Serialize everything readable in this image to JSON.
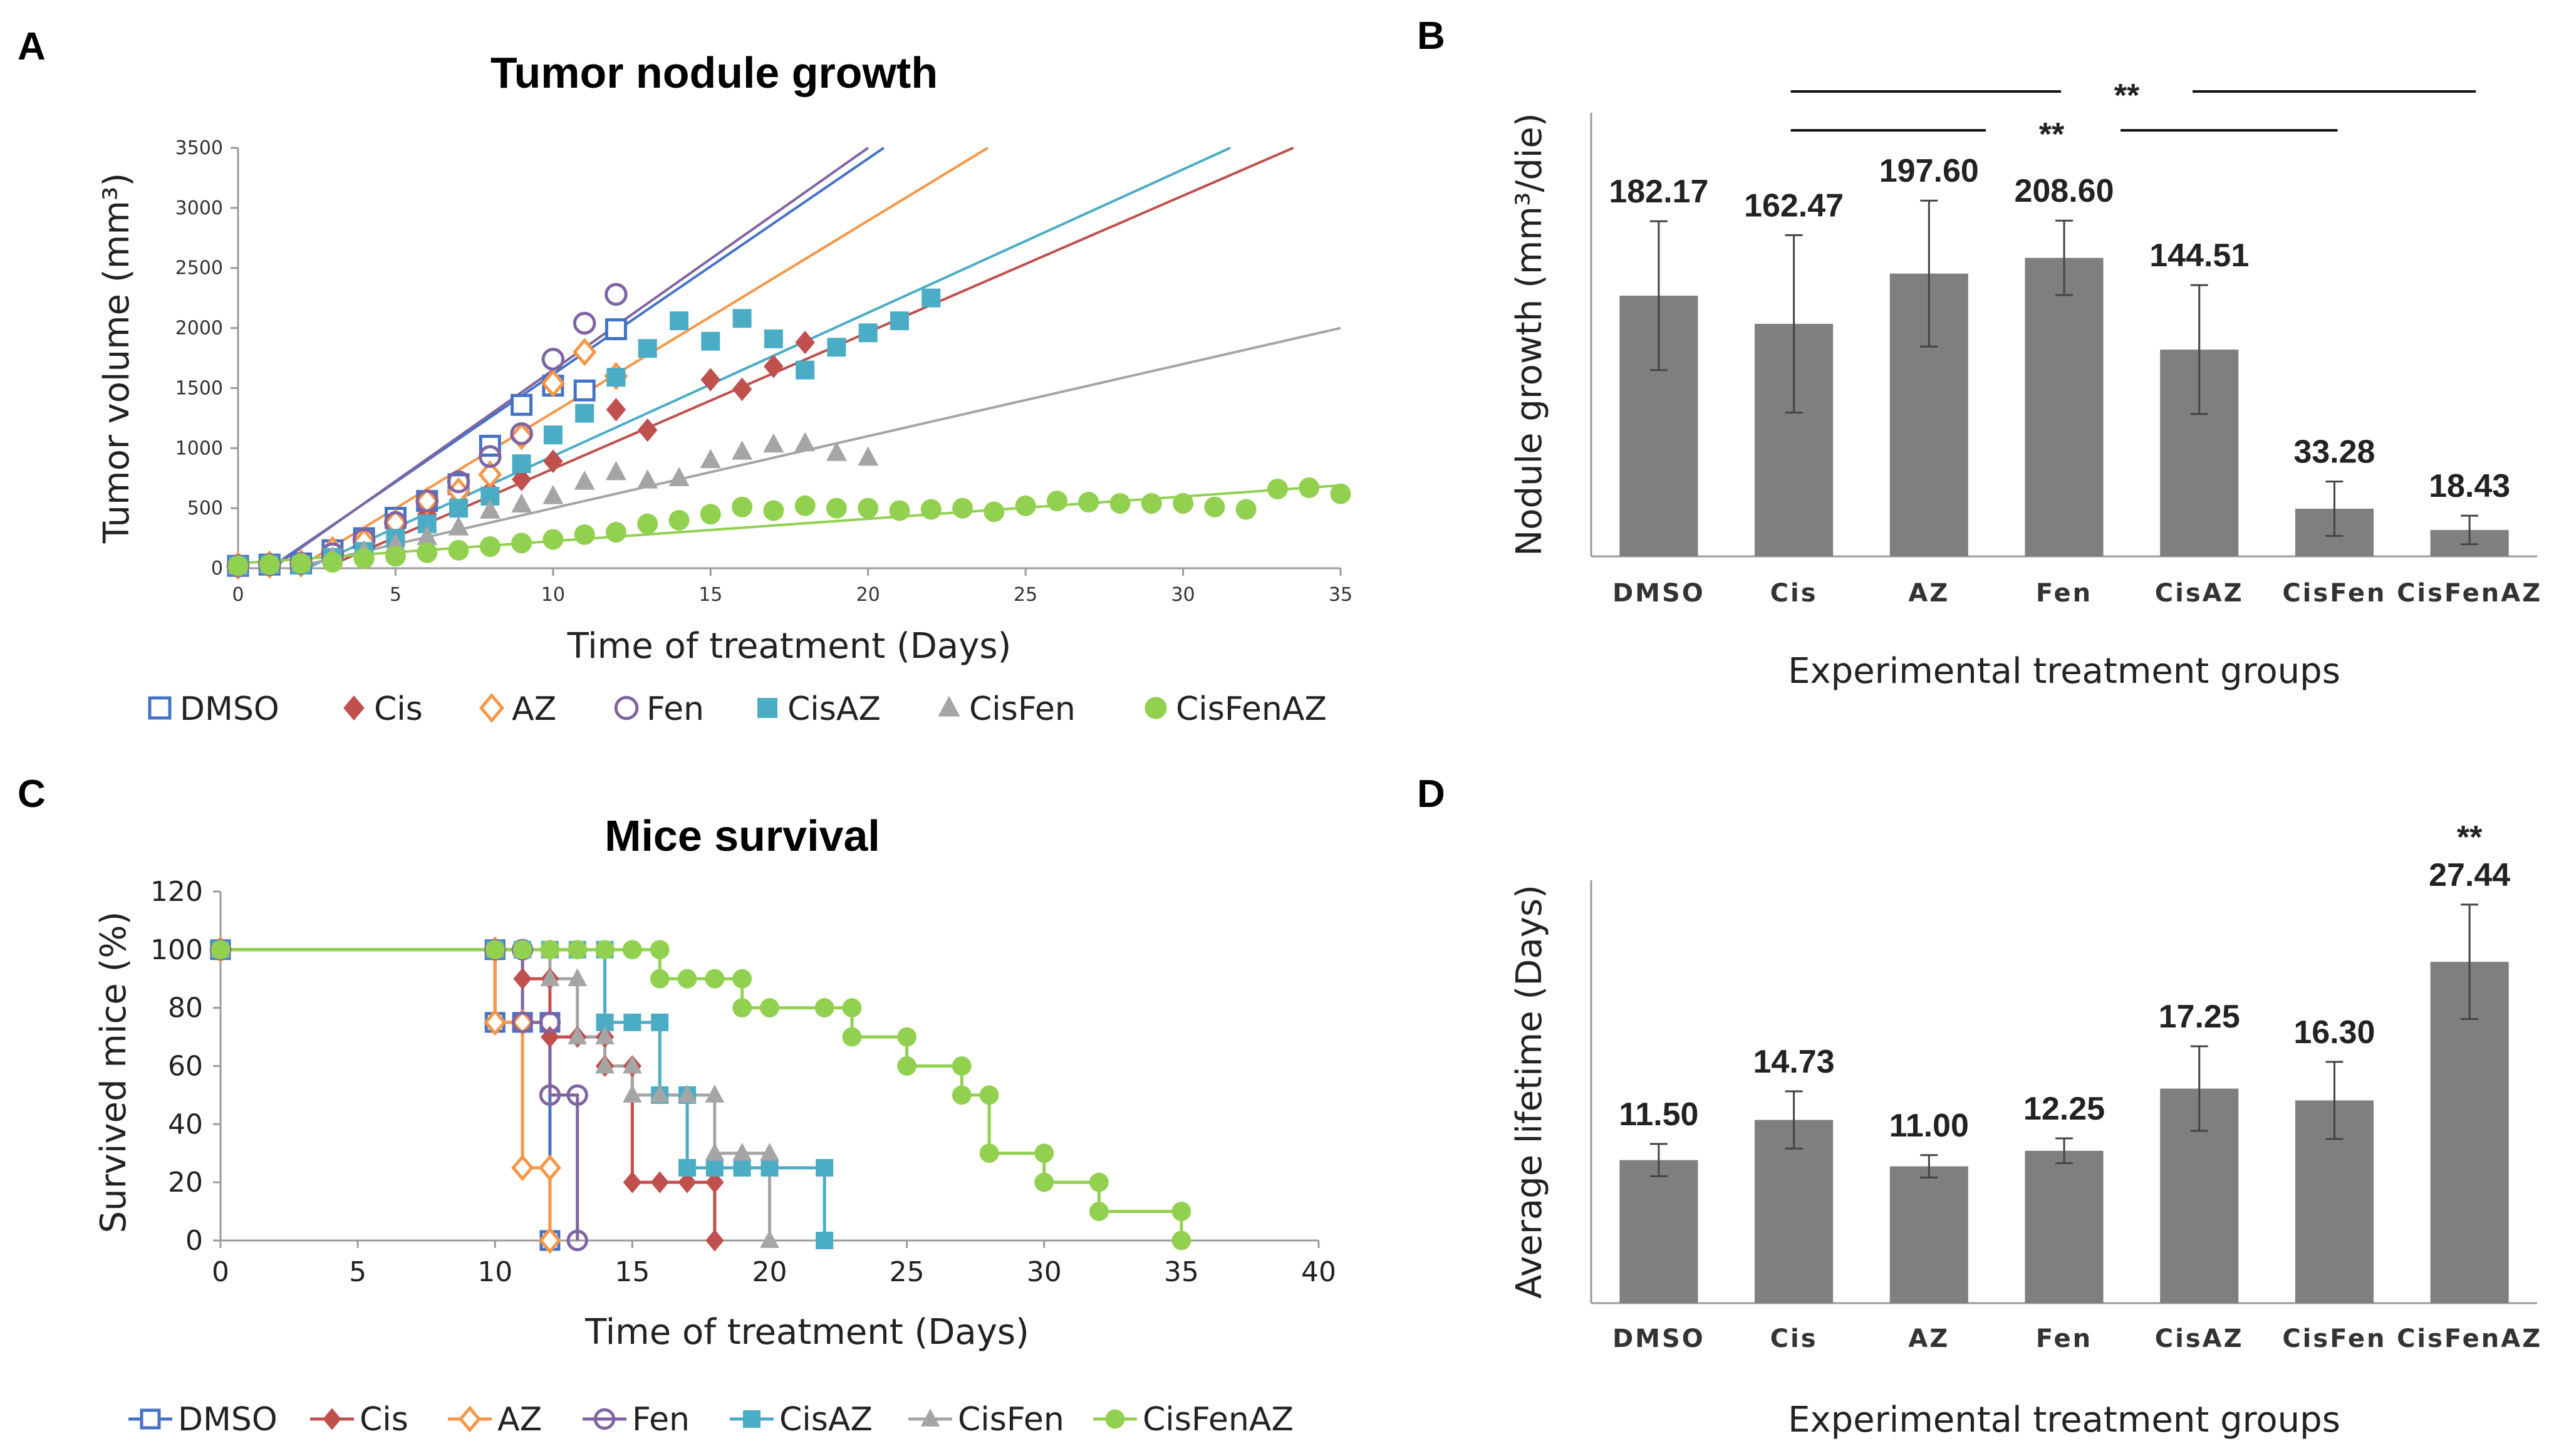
{
  "panels": {
    "A": "A",
    "B": "B",
    "C": "C",
    "D": "D"
  },
  "colors": {
    "DMSO": "#4472C4",
    "Cis": "#C0504D",
    "AZ": "#F79646",
    "Fen": "#8064A2",
    "CisAZ": "#4BACC6",
    "CisFen": "#A5A5A5",
    "CisFenAZ": "#92D050",
    "bar": "#7F7F7F"
  },
  "chart_data": [
    {
      "id": "A",
      "type": "scatter",
      "title": "Tumor nodule growth",
      "xlabel": "Time of treatment (Days)",
      "ylabel": "Tumor volume (mm³)",
      "xlim": [
        0,
        35
      ],
      "ylim": [
        0,
        3500
      ],
      "xticks": [
        0,
        5,
        10,
        15,
        20,
        25,
        30,
        35
      ],
      "yticks": [
        0,
        500,
        1000,
        1500,
        2000,
        2500,
        3000,
        3500
      ],
      "series": [
        {
          "name": "DMSO",
          "marker": "square-open",
          "x": [
            0,
            1,
            2,
            3,
            4,
            5,
            6,
            7,
            8,
            9,
            10,
            11,
            12
          ],
          "y": [
            20,
            30,
            40,
            150,
            250,
            420,
            560,
            700,
            1020,
            1360,
            1520,
            1480,
            1990
          ],
          "trend": [
            [
              0,
              -180
            ],
            [
              20.5,
              3500
            ]
          ]
        },
        {
          "name": "Cis",
          "marker": "diamond",
          "x": [
            0,
            1,
            2,
            3,
            4,
            5,
            6,
            7,
            8,
            9,
            10,
            12,
            13,
            15,
            16,
            17,
            18
          ],
          "y": [
            20,
            30,
            40,
            100,
            200,
            330,
            450,
            560,
            640,
            740,
            890,
            1320,
            1150,
            1570,
            1490,
            1680,
            1880
          ],
          "trend": [
            [
              0,
              -310
            ],
            [
              33.5,
              3500
            ]
          ]
        },
        {
          "name": "AZ",
          "marker": "diamond-open",
          "x": [
            0,
            1,
            2,
            3,
            4,
            5,
            6,
            7,
            8,
            9,
            10,
            11,
            12
          ],
          "y": [
            20,
            30,
            40,
            150,
            220,
            380,
            560,
            640,
            780,
            1100,
            1540,
            1800,
            1600
          ],
          "trend": [
            [
              0,
              -300
            ],
            [
              23.8,
              3500
            ]
          ]
        },
        {
          "name": "Fen",
          "marker": "circle-open",
          "x": [
            0,
            1,
            2,
            3,
            4,
            5,
            6,
            7,
            8,
            9,
            10,
            11,
            12
          ],
          "y": [
            20,
            30,
            40,
            120,
            240,
            380,
            560,
            720,
            930,
            1120,
            1740,
            2040,
            2280
          ],
          "trend": [
            [
              0,
              -200
            ],
            [
              20,
              3500
            ]
          ]
        },
        {
          "name": "CisAZ",
          "marker": "square",
          "x": [
            0,
            1,
            2,
            3,
            4,
            5,
            6,
            7,
            8,
            9,
            10,
            11,
            12,
            13,
            14,
            15,
            16,
            17,
            18,
            19,
            20,
            21,
            22
          ],
          "y": [
            20,
            30,
            30,
            90,
            140,
            250,
            370,
            500,
            600,
            870,
            1110,
            1290,
            1590,
            1830,
            2060,
            1890,
            2080,
            1910,
            1650,
            1840,
            1960,
            2060,
            2250
          ],
          "trend": [
            [
              0,
              -260
            ],
            [
              31.5,
              3500
            ]
          ]
        },
        {
          "name": "CisFen",
          "marker": "triangle",
          "x": [
            0,
            1,
            2,
            3,
            4,
            5,
            6,
            7,
            8,
            9,
            10,
            11,
            12,
            13,
            14,
            15,
            16,
            17,
            18,
            19,
            20
          ],
          "y": [
            20,
            30,
            40,
            90,
            140,
            200,
            260,
            340,
            480,
            530,
            600,
            720,
            800,
            730,
            750,
            900,
            970,
            1030,
            1040,
            960,
            920
          ],
          "trend": [
            [
              0,
              -100
            ],
            [
              35,
              2000
            ]
          ]
        },
        {
          "name": "CisFenAZ",
          "marker": "circle",
          "x": [
            0,
            1,
            2,
            3,
            4,
            5,
            6,
            7,
            8,
            9,
            10,
            11,
            12,
            13,
            14,
            15,
            16,
            17,
            18,
            19,
            20,
            21,
            22,
            23,
            24,
            25,
            26,
            27,
            28,
            29,
            30,
            31,
            32,
            33,
            34,
            35
          ],
          "y": [
            20,
            30,
            40,
            50,
            80,
            100,
            130,
            150,
            180,
            210,
            240,
            280,
            300,
            370,
            400,
            450,
            510,
            480,
            520,
            500,
            500,
            480,
            490,
            500,
            470,
            520,
            560,
            550,
            540,
            540,
            540,
            510,
            490,
            660,
            670,
            620
          ],
          "trend": [
            [
              0,
              40
            ],
            [
              35,
              690
            ]
          ]
        }
      ]
    },
    {
      "id": "B",
      "type": "bar",
      "xlabel": "Experimental treatment groups",
      "ylabel": "Nodule growth (mm³/die)",
      "categories": [
        "DMSO",
        "Cis",
        "AZ",
        "Fen",
        "CisAZ",
        "CisFen",
        "CisFenAZ"
      ],
      "values": [
        182.17,
        162.47,
        197.6,
        208.6,
        144.51,
        33.28,
        18.43
      ],
      "value_labels": [
        "182.17",
        "162.47",
        "197.60",
        "208.60",
        "144.51",
        "33.28",
        "18.43"
      ],
      "errors": [
        52,
        62,
        51,
        26,
        45,
        19,
        10
      ],
      "ylim": [
        0,
        310
      ],
      "significance": [
        {
          "label": "**",
          "from": 1,
          "to": 6,
          "level": 1
        },
        {
          "label": "**",
          "from": 1,
          "to": 5,
          "level": 2
        }
      ]
    },
    {
      "id": "C",
      "type": "line",
      "title": "Mice survival",
      "xlabel": "Time of treatment (Days)",
      "ylabel": "Survived mice (%)",
      "xlim": [
        0,
        40
      ],
      "ylim": [
        0,
        120
      ],
      "xticks": [
        0,
        5,
        10,
        15,
        20,
        25,
        30,
        35,
        40
      ],
      "yticks": [
        0,
        20,
        40,
        60,
        80,
        100,
        120
      ],
      "series": [
        {
          "name": "DMSO",
          "marker": "square-open",
          "points": [
            [
              0,
              100
            ],
            [
              10,
              100
            ],
            [
              10,
              75
            ],
            [
              11,
              75
            ],
            [
              12,
              75
            ],
            [
              12,
              0
            ]
          ]
        },
        {
          "name": "Cis",
          "marker": "diamond",
          "points": [
            [
              0,
              100
            ],
            [
              10,
              100
            ],
            [
              11,
              100
            ],
            [
              11,
              90
            ],
            [
              12,
              90
            ],
            [
              12,
              70
            ],
            [
              13,
              70
            ],
            [
              14,
              70
            ],
            [
              14,
              60
            ],
            [
              15,
              60
            ],
            [
              15,
              20
            ],
            [
              16,
              20
            ],
            [
              17,
              20
            ],
            [
              18,
              20
            ],
            [
              18,
              0
            ]
          ]
        },
        {
          "name": "AZ",
          "marker": "diamond-open",
          "points": [
            [
              0,
              100
            ],
            [
              10,
              100
            ],
            [
              10,
              75
            ],
            [
              11,
              75
            ],
            [
              11,
              25
            ],
            [
              12,
              25
            ],
            [
              12,
              0
            ]
          ]
        },
        {
          "name": "Fen",
          "marker": "circle-open",
          "points": [
            [
              0,
              100
            ],
            [
              10,
              100
            ],
            [
              11,
              100
            ],
            [
              11,
              75
            ],
            [
              12,
              75
            ],
            [
              12,
              50
            ],
            [
              13,
              50
            ],
            [
              13,
              0
            ]
          ]
        },
        {
          "name": "CisAZ",
          "marker": "square",
          "points": [
            [
              0,
              100
            ],
            [
              10,
              100
            ],
            [
              11,
              100
            ],
            [
              12,
              100
            ],
            [
              13,
              100
            ],
            [
              14,
              100
            ],
            [
              14,
              75
            ],
            [
              15,
              75
            ],
            [
              16,
              75
            ],
            [
              16,
              50
            ],
            [
              17,
              50
            ],
            [
              17,
              25
            ],
            [
              18,
              25
            ],
            [
              19,
              25
            ],
            [
              20,
              25
            ],
            [
              22,
              25
            ],
            [
              22,
              0
            ]
          ]
        },
        {
          "name": "CisFen",
          "marker": "triangle",
          "points": [
            [
              0,
              100
            ],
            [
              10,
              100
            ],
            [
              11,
              100
            ],
            [
              12,
              100
            ],
            [
              12,
              90
            ],
            [
              13,
              90
            ],
            [
              13,
              70
            ],
            [
              14,
              70
            ],
            [
              14,
              60
            ],
            [
              15,
              60
            ],
            [
              15,
              50
            ],
            [
              16,
              50
            ],
            [
              17,
              50
            ],
            [
              18,
              50
            ],
            [
              18,
              30
            ],
            [
              19,
              30
            ],
            [
              20,
              30
            ],
            [
              20,
              0
            ]
          ]
        },
        {
          "name": "CisFenAZ",
          "marker": "circle",
          "points": [
            [
              0,
              100
            ],
            [
              10,
              100
            ],
            [
              11,
              100
            ],
            [
              12,
              100
            ],
            [
              13,
              100
            ],
            [
              14,
              100
            ],
            [
              15,
              100
            ],
            [
              16,
              100
            ],
            [
              16,
              90
            ],
            [
              17,
              90
            ],
            [
              18,
              90
            ],
            [
              19,
              90
            ],
            [
              19,
              80
            ],
            [
              20,
              80
            ],
            [
              22,
              80
            ],
            [
              23,
              80
            ],
            [
              23,
              70
            ],
            [
              25,
              70
            ],
            [
              25,
              60
            ],
            [
              27,
              60
            ],
            [
              27,
              50
            ],
            [
              28,
              50
            ],
            [
              28,
              30
            ],
            [
              30,
              30
            ],
            [
              30,
              20
            ],
            [
              32,
              20
            ],
            [
              32,
              10
            ],
            [
              35,
              10
            ],
            [
              35,
              0
            ]
          ]
        }
      ]
    },
    {
      "id": "D",
      "type": "bar",
      "xlabel": "Experimental treatment groups",
      "ylabel": "Average lifetime (Days)",
      "categories": [
        "DMSO",
        "Cis",
        "AZ",
        "Fen",
        "CisAZ",
        "CisFen",
        "CisFenAZ"
      ],
      "values": [
        11.5,
        14.73,
        11.0,
        12.25,
        17.25,
        16.3,
        27.44
      ],
      "value_labels": [
        "11.50",
        "14.73",
        "11.00",
        "12.25",
        "17.25",
        "16.30",
        "27.44"
      ],
      "errors": [
        1.3,
        2.3,
        0.9,
        1.0,
        3.4,
        3.1,
        4.6
      ],
      "ylim": [
        0,
        34
      ],
      "significance": [
        {
          "label": "**",
          "bar": 6
        }
      ]
    }
  ]
}
